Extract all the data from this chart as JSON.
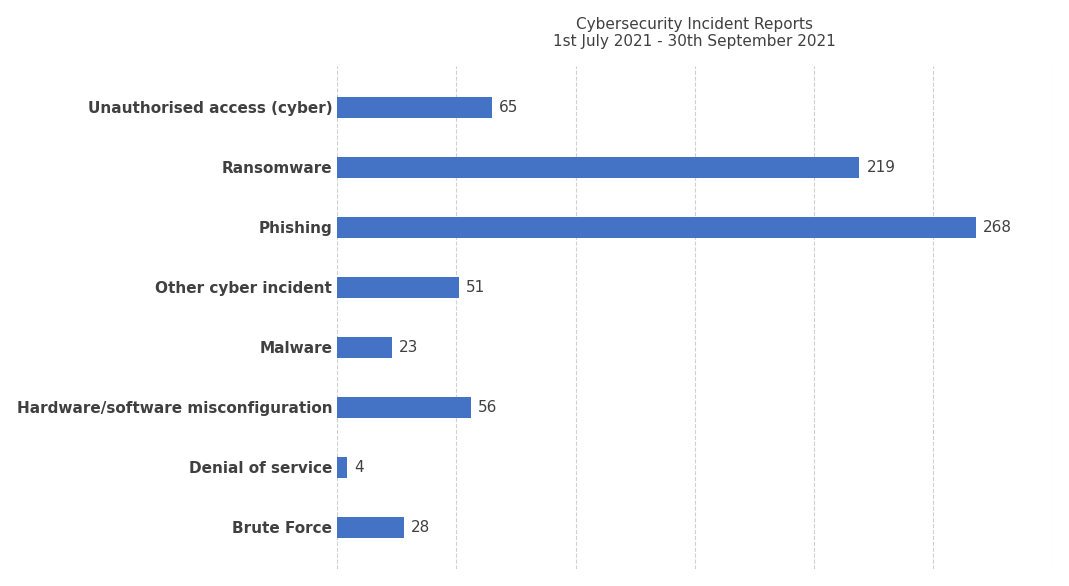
{
  "title_line1": "Cybersecurity Incident Reports",
  "title_line2": "1st July 2021 - 30th September 2021",
  "categories": [
    "Unauthorised access (cyber)",
    "Ransomware",
    "Phishing",
    "Other cyber incident",
    "Malware",
    "Hardware/software misconfiguration",
    "Denial of service",
    "Brute Force"
  ],
  "values": [
    65,
    219,
    268,
    51,
    23,
    56,
    4,
    28
  ],
  "bar_color": "#4472C4",
  "background_color": "#ffffff",
  "xlim": [
    0,
    300
  ],
  "xtick_interval": 50,
  "bar_height": 0.35,
  "title_fontsize": 11,
  "value_fontsize": 11,
  "ytick_fontsize": 11,
  "grid_color": "#d0d0d0",
  "text_color": "#404040"
}
